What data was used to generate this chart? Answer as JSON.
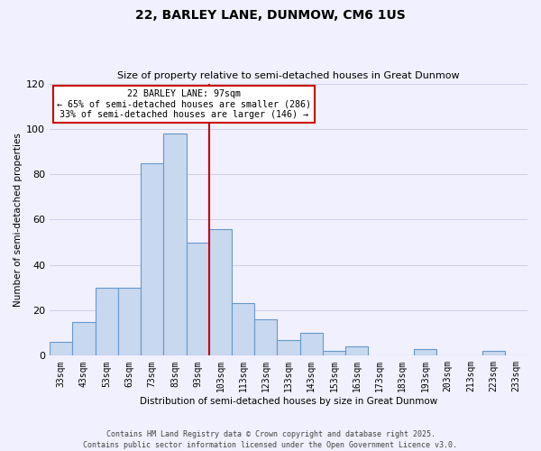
{
  "title": "22, BARLEY LANE, DUNMOW, CM6 1US",
  "subtitle": "Size of property relative to semi-detached houses in Great Dunmow",
  "xlabel": "Distribution of semi-detached houses by size in Great Dunmow",
  "ylabel": "Number of semi-detached properties",
  "categories": [
    "33sqm",
    "43sqm",
    "53sqm",
    "63sqm",
    "73sqm",
    "83sqm",
    "93sqm",
    "103sqm",
    "113sqm",
    "123sqm",
    "133sqm",
    "143sqm",
    "153sqm",
    "163sqm",
    "173sqm",
    "183sqm",
    "193sqm",
    "203sqm",
    "213sqm",
    "223sqm",
    "233sqm"
  ],
  "values": [
    6,
    15,
    30,
    30,
    85,
    98,
    50,
    56,
    23,
    16,
    7,
    10,
    2,
    4,
    0,
    0,
    3,
    0,
    0,
    2,
    0
  ],
  "bar_color": "#c8d8ef",
  "bar_edge_color": "#6699cc",
  "vline_x": 6.5,
  "vline_color": "#cc0000",
  "annotation_title": "22 BARLEY LANE: 97sqm",
  "annotation_line1": "← 65% of semi-detached houses are smaller (286)",
  "annotation_line2": "33% of semi-detached houses are larger (146) →",
  "annotation_box_facecolor": "#ffffff",
  "annotation_box_edgecolor": "#cc0000",
  "ylim": [
    0,
    120
  ],
  "yticks": [
    0,
    20,
    40,
    60,
    80,
    100,
    120
  ],
  "background_color": "#f0f0ff",
  "grid_color": "#d0d0e8",
  "footer_line1": "Contains HM Land Registry data © Crown copyright and database right 2025.",
  "footer_line2": "Contains public sector information licensed under the Open Government Licence v3.0."
}
